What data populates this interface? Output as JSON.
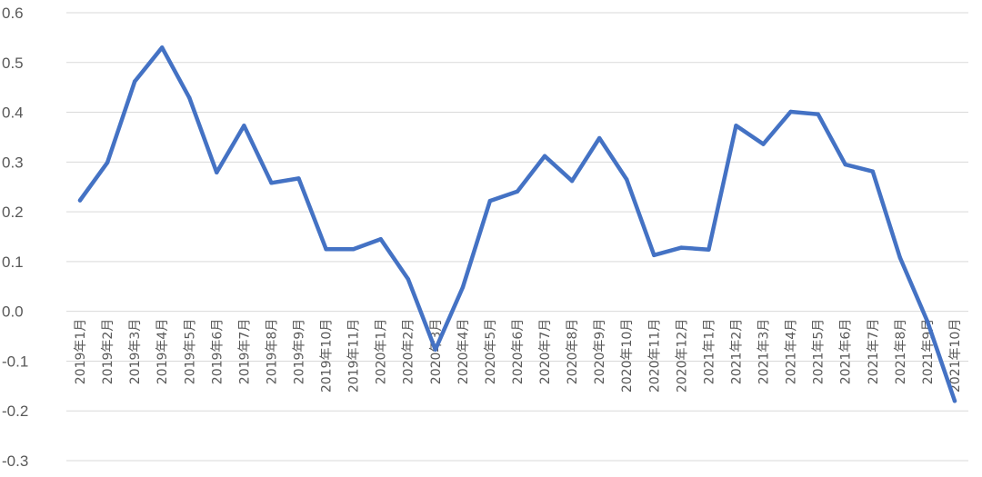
{
  "chart_data": {
    "type": "line",
    "title": "",
    "xlabel": "",
    "ylabel": "",
    "ylim": [
      -0.3,
      0.6
    ],
    "yticks": [
      "0.6",
      "0.5",
      "0.4",
      "0.3",
      "0.2",
      "0.1",
      "0.0",
      "-0.1",
      "-0.2",
      "-0.3"
    ],
    "grid": true,
    "legend": "none",
    "series_color": "#4472c4",
    "categories": [
      "2019年1月",
      "2019年2月",
      "2019年3月",
      "2019年4月",
      "2019年5月",
      "2019年6月",
      "2019年7月",
      "2019年8月",
      "2019年9月",
      "2019年10月",
      "2019年11月",
      "2020年1月",
      "2020年2月",
      "2020年3月",
      "2020年4月",
      "2020年5月",
      "2020年6月",
      "2020年7月",
      "2020年8月",
      "2020年9月",
      "2020年10月",
      "2020年11月",
      "2020年12月",
      "2021年1月",
      "2021年2月",
      "2021年3月",
      "2021年4月",
      "2021年5月",
      "2021年6月",
      "2021年7月",
      "2021年8月",
      "2021年9月",
      "2021年10月"
    ],
    "series": [
      {
        "values": [
          0.223,
          0.299,
          0.462,
          0.53,
          0.429,
          0.279,
          0.373,
          0.258,
          0.267,
          0.125,
          0.125,
          0.145,
          0.065,
          -0.077,
          0.048,
          0.222,
          0.241,
          0.312,
          0.262,
          0.348,
          0.265,
          0.113,
          0.128,
          0.124,
          0.373,
          0.336,
          0.401,
          0.396,
          0.295,
          0.281,
          0.108,
          -0.02,
          -0.18
        ]
      }
    ]
  }
}
